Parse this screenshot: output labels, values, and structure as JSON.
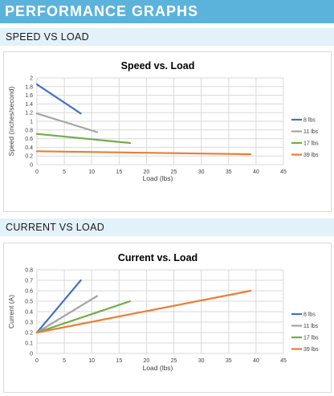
{
  "page": {
    "header": "PERFORMANCE GRAPHS",
    "sections": [
      {
        "heading": "SPEED VS LOAD"
      },
      {
        "heading": "CURRENT VS LOAD"
      }
    ]
  },
  "chart_data": [
    {
      "type": "line",
      "title": "Speed vs. Load",
      "xlabel": "Load (lbs)",
      "ylabel": "Speed (inches/second)",
      "xlim": [
        0,
        45
      ],
      "ylim": [
        0,
        2
      ],
      "xticks": [
        "0",
        "5",
        "10",
        "15",
        "20",
        "25",
        "30",
        "35",
        "40",
        "45"
      ],
      "yticks": [
        "0",
        "0.2",
        "0.4",
        "0.6",
        "0.8",
        "1",
        "1.2",
        "1.4",
        "1.6",
        "1.8",
        "2"
      ],
      "grid": true,
      "legend_position": "right",
      "series": [
        {
          "name": "8 lbs",
          "color": "#4472c4",
          "points": [
            [
              0,
              1.85
            ],
            [
              8,
              1.18
            ]
          ]
        },
        {
          "name": "11 lbs",
          "color": "#a5a5a5",
          "points": [
            [
              0,
              1.18
            ],
            [
              11,
              0.75
            ]
          ]
        },
        {
          "name": "17 lbs",
          "color": "#70ad47",
          "points": [
            [
              0,
              0.71
            ],
            [
              17,
              0.5
            ]
          ]
        },
        {
          "name": "39 lbs",
          "color": "#ed7d31",
          "points": [
            [
              0,
              0.31
            ],
            [
              39,
              0.24
            ]
          ]
        }
      ]
    },
    {
      "type": "line",
      "title": "Current vs. Load",
      "xlabel": "Load (lbs)",
      "ylabel": "Current (A)",
      "xlim": [
        0,
        45
      ],
      "ylim": [
        0,
        0.8
      ],
      "xticks": [
        "0",
        "5",
        "10",
        "15",
        "20",
        "25",
        "30",
        "35",
        "40",
        "45"
      ],
      "yticks": [
        "0",
        "0.1",
        "0.2",
        "0.3",
        "0.4",
        "0.5",
        "0.6",
        "0.7",
        "0.8"
      ],
      "grid": true,
      "legend_position": "right",
      "series": [
        {
          "name": "8 lbs",
          "color": "#4472c4",
          "points": [
            [
              0,
              0.2
            ],
            [
              8,
              0.7
            ]
          ]
        },
        {
          "name": "11 lbs",
          "color": "#a5a5a5",
          "points": [
            [
              0,
              0.2
            ],
            [
              11,
              0.55
            ]
          ]
        },
        {
          "name": "17 lbs",
          "color": "#70ad47",
          "points": [
            [
              0,
              0.2
            ],
            [
              17,
              0.5
            ]
          ]
        },
        {
          "name": "39 lbs",
          "color": "#ed7d31",
          "points": [
            [
              0,
              0.2
            ],
            [
              39,
              0.6
            ]
          ]
        }
      ]
    }
  ]
}
